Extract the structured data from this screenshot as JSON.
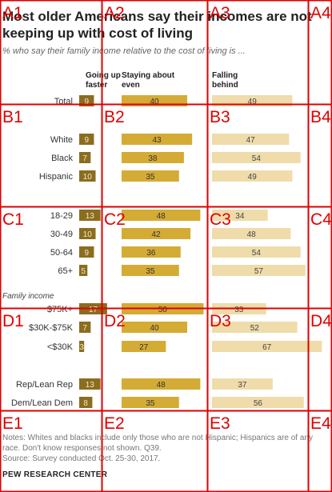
{
  "header": {
    "title": "Most older Americans say their incomes are not keeping up with cost of living",
    "subtitle": "% who say their family income relative to the cost of living is ..."
  },
  "notes": {
    "line1": "Notes: Whites and blacks include only those who are not Hispanic; Hispanics are of any race. Don't know responses not shown. Q39.",
    "source": "Source: Survey conducted Oct. 25-30, 2017.",
    "organization": "PEW RESEARCH CENTER"
  },
  "chart_data": {
    "type": "bar",
    "orientation": "horizontal",
    "stacked": false,
    "series": [
      {
        "name": "Going up faster",
        "color": "#8a6d1f"
      },
      {
        "name": "Staying about even",
        "color": "#d4ab34"
      },
      {
        "name": "Falling behind",
        "color": "#efdcaa"
      }
    ],
    "section_labels": [
      "Family income"
    ],
    "rows": [
      {
        "label": "Total",
        "values": [
          9,
          40,
          49
        ]
      },
      {
        "label": "White",
        "values": [
          9,
          43,
          47
        ]
      },
      {
        "label": "Black",
        "values": [
          7,
          38,
          54
        ]
      },
      {
        "label": "Hispanic",
        "values": [
          10,
          35,
          49
        ]
      },
      {
        "label": "18-29",
        "values": [
          13,
          48,
          34
        ]
      },
      {
        "label": "30-49",
        "values": [
          10,
          42,
          48
        ]
      },
      {
        "label": "50-64",
        "values": [
          9,
          36,
          54
        ]
      },
      {
        "label": "65+",
        "values": [
          5,
          35,
          57
        ]
      },
      {
        "label": "$75K+",
        "values": [
          17,
          50,
          33
        ]
      },
      {
        "label": "$30K-$75K",
        "values": [
          7,
          40,
          52
        ]
      },
      {
        "label": "<$30K",
        "values": [
          3,
          27,
          67
        ]
      },
      {
        "label": "Rep/Lean Rep",
        "values": [
          13,
          48,
          37
        ]
      },
      {
        "label": "Dem/Lean Dem",
        "values": [
          8,
          35,
          56
        ]
      }
    ]
  },
  "grid_overlay": {
    "color": "#e00000",
    "columns": [
      "A",
      "B",
      "C",
      "D",
      "E"
    ],
    "labels": [
      "A1",
      "A2",
      "A3",
      "A4",
      "B1",
      "B2",
      "B3",
      "B4",
      "C1",
      "C2",
      "C3",
      "C4",
      "D1",
      "D2",
      "D3",
      "D4",
      "E1",
      "E2",
      "E3",
      "E4"
    ]
  }
}
